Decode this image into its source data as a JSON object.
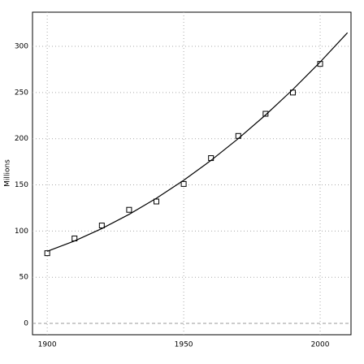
{
  "chart_data": {
    "type": "scatter",
    "ylabel": "Millions",
    "xlim": [
      1894.6,
      2011.3
    ],
    "ylim": [
      -12.3,
      337
    ],
    "xticks": [
      1900,
      1950,
      2000
    ],
    "yticks": [
      0,
      50,
      100,
      150,
      200,
      250,
      300
    ],
    "grid": true,
    "series": [
      {
        "type": "scatter",
        "color": "#000000",
        "x": [
          1900,
          1910,
          1920,
          1930,
          1940,
          1950,
          1960,
          1970,
          1980,
          1990,
          2000
        ],
        "values": [
          76,
          92,
          106,
          123,
          132,
          151,
          179,
          203,
          227,
          250,
          281
        ]
      },
      {
        "type": "line",
        "color": "#000000",
        "x": [
          1900,
          1910,
          1920,
          1930,
          1940,
          1950,
          1960,
          1970,
          1980,
          1990,
          2000,
          2010
        ],
        "values": [
          78,
          89.3,
          102.7,
          118.1,
          135.5,
          155,
          176.5,
          200.1,
          225.7,
          253.3,
          283,
          314.7
        ]
      }
    ]
  }
}
